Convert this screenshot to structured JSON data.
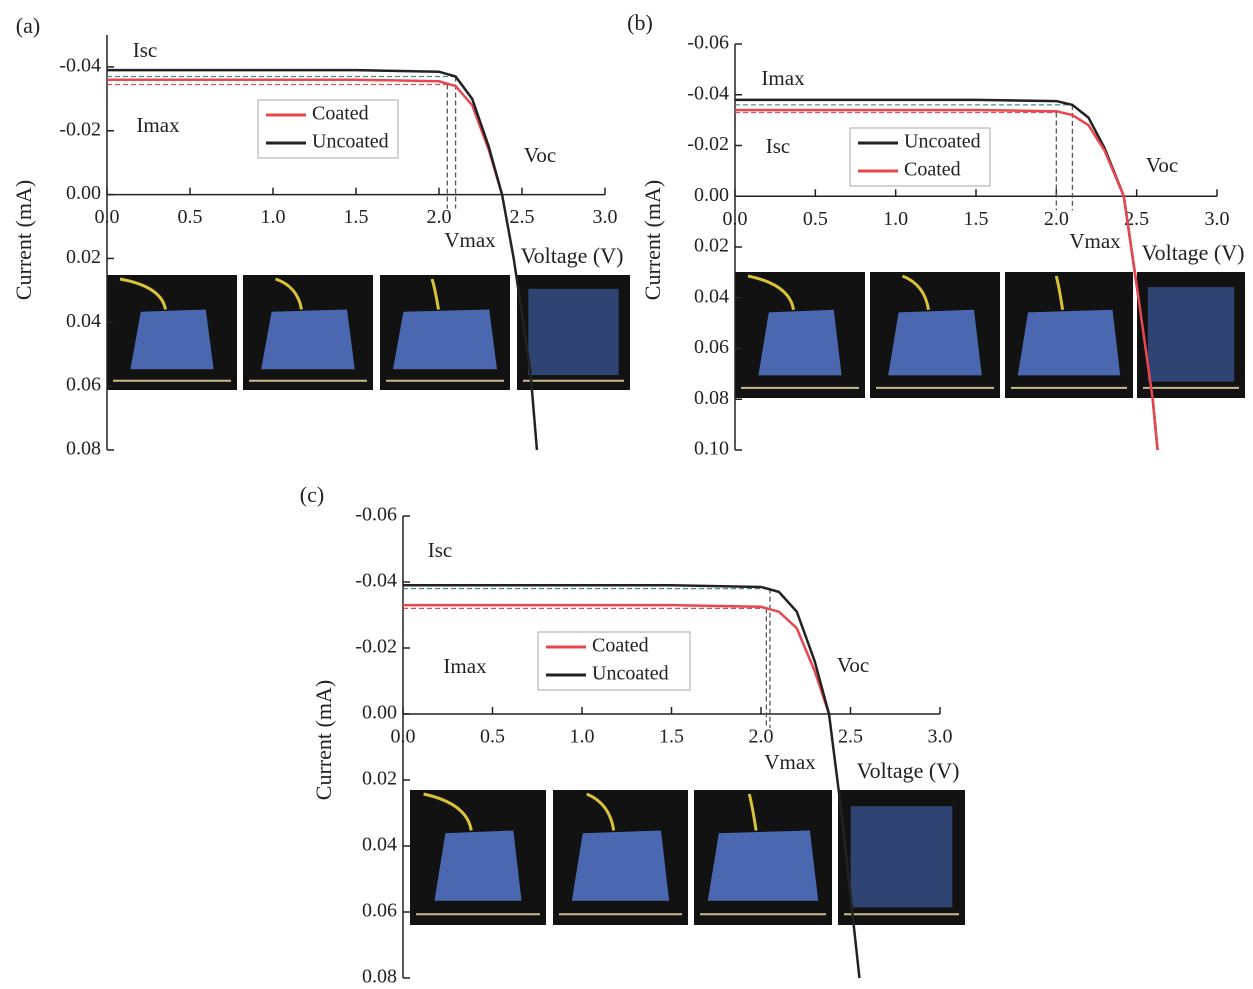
{
  "chart_data": [
    {
      "type": "line",
      "panel": "(a)",
      "y_label": "Current (mA)",
      "x_label": "Voltage (V)",
      "annotations": [
        "Isc",
        "Imax",
        "Voc",
        "Vmax"
      ],
      "xlim": [
        0,
        3
      ],
      "xticks": [
        {
          "value": 0,
          "label": "0.0"
        },
        0.5,
        {
          "value": 1,
          "label": "1.0"
        },
        1.5,
        {
          "value": 2,
          "label": "2.0"
        },
        2.5,
        {
          "value": 3,
          "label": "3.0"
        }
      ],
      "ylim": [
        0.08,
        -0.05
      ],
      "yticks": [
        -0.04,
        -0.02,
        {
          "value": 0,
          "label": "0.00"
        },
        0.02,
        0.04,
        0.06,
        0.08
      ],
      "series": [
        {
          "name": "Coated",
          "color": "#e8474f",
          "x": [
            0,
            0.5,
            1,
            1.5,
            2,
            2.1,
            2.2,
            2.3,
            2.38
          ],
          "values": [
            -0.036,
            -0.036,
            -0.036,
            -0.036,
            -0.0355,
            -0.034,
            -0.028,
            -0.014,
            0
          ],
          "vmax": 2.05,
          "imax": -0.0345
        },
        {
          "name": "Uncoated",
          "color": "#222222",
          "x": [
            0,
            0.5,
            1,
            1.5,
            2,
            2.1,
            2.2,
            2.3,
            2.38,
            2.45,
            2.55,
            2.59
          ],
          "values": [
            -0.039,
            -0.039,
            -0.039,
            -0.039,
            -0.0385,
            -0.037,
            -0.03,
            -0.015,
            0,
            0.02,
            0.055,
            0.08
          ],
          "vmax": 2.1,
          "imax": -0.037
        }
      ]
    },
    {
      "type": "line",
      "panel": "(b)",
      "y_label": "Current (mA)",
      "x_label": "Voltage (V)",
      "annotations": [
        "Imax",
        "Isc",
        "Voc",
        "Vmax"
      ],
      "xlim": [
        0,
        3
      ],
      "xticks": [
        {
          "value": 0,
          "label": "0.0"
        },
        0.5,
        {
          "value": 1,
          "label": "1.0"
        },
        1.5,
        {
          "value": 2,
          "label": "2.0"
        },
        2.5,
        {
          "value": 3,
          "label": "3.0"
        }
      ],
      "ylim": [
        0.1,
        -0.06
      ],
      "yticks": [
        -0.06,
        -0.04,
        -0.02,
        {
          "value": 0,
          "label": "0.00"
        },
        0.02,
        0.04,
        0.06,
        0.08,
        {
          "value": 0.1,
          "label": "0.10"
        }
      ],
      "series": [
        {
          "name": "Uncoated",
          "color": "#222222",
          "x": [
            0,
            0.5,
            1,
            1.5,
            2,
            2.1,
            2.2,
            2.3,
            2.42,
            2.5,
            2.6,
            2.63
          ],
          "values": [
            -0.038,
            -0.038,
            -0.038,
            -0.038,
            -0.0375,
            -0.036,
            -0.031,
            -0.019,
            0,
            0.035,
            0.08,
            0.1
          ],
          "vmax": 2.1,
          "imax": -0.036
        },
        {
          "name": "Coated",
          "color": "#e8474f",
          "x": [
            0,
            0.5,
            1,
            1.5,
            2,
            2.1,
            2.2,
            2.3,
            2.42,
            2.5,
            2.6,
            2.63
          ],
          "values": [
            -0.034,
            -0.034,
            -0.034,
            -0.034,
            -0.0335,
            -0.032,
            -0.028,
            -0.018,
            0,
            0.035,
            0.08,
            0.1
          ],
          "vmax": 2,
          "imax": -0.033
        }
      ]
    },
    {
      "type": "line",
      "panel": "(c)",
      "y_label": "Current (mA)",
      "x_label": "Voltage (V)",
      "annotations": [
        "Isc",
        "Imax",
        "Voc",
        "Vmax"
      ],
      "xlim": [
        0,
        3
      ],
      "xticks": [
        {
          "value": 0,
          "label": "0.0"
        },
        0.5,
        {
          "value": 1,
          "label": "1.0"
        },
        1.5,
        {
          "value": 2,
          "label": "2.0"
        },
        2.5,
        {
          "value": 3,
          "label": "3.0"
        }
      ],
      "ylim": [
        0.08,
        -0.06
      ],
      "yticks": [
        -0.06,
        -0.04,
        -0.02,
        {
          "value": 0,
          "label": "0.00"
        },
        0.02,
        0.04,
        0.06,
        0.08
      ],
      "series": [
        {
          "name": "Coated",
          "color": "#e8474f",
          "x": [
            0,
            0.5,
            1,
            1.5,
            2,
            2.1,
            2.2,
            2.3,
            2.38
          ],
          "values": [
            -0.033,
            -0.033,
            -0.033,
            -0.033,
            -0.0325,
            -0.031,
            -0.026,
            -0.013,
            0
          ],
          "vmax": 2.03,
          "imax": -0.032
        },
        {
          "name": "Uncoated",
          "color": "#222222",
          "x": [
            0,
            0.5,
            1,
            1.5,
            2,
            2.1,
            2.2,
            2.3,
            2.38,
            2.45,
            2.52,
            2.55
          ],
          "values": [
            -0.039,
            -0.039,
            -0.039,
            -0.039,
            -0.0385,
            -0.037,
            -0.031,
            -0.016,
            0,
            0.03,
            0.065,
            0.08
          ],
          "vmax": 2.05,
          "imax": -0.038
        }
      ]
    }
  ]
}
